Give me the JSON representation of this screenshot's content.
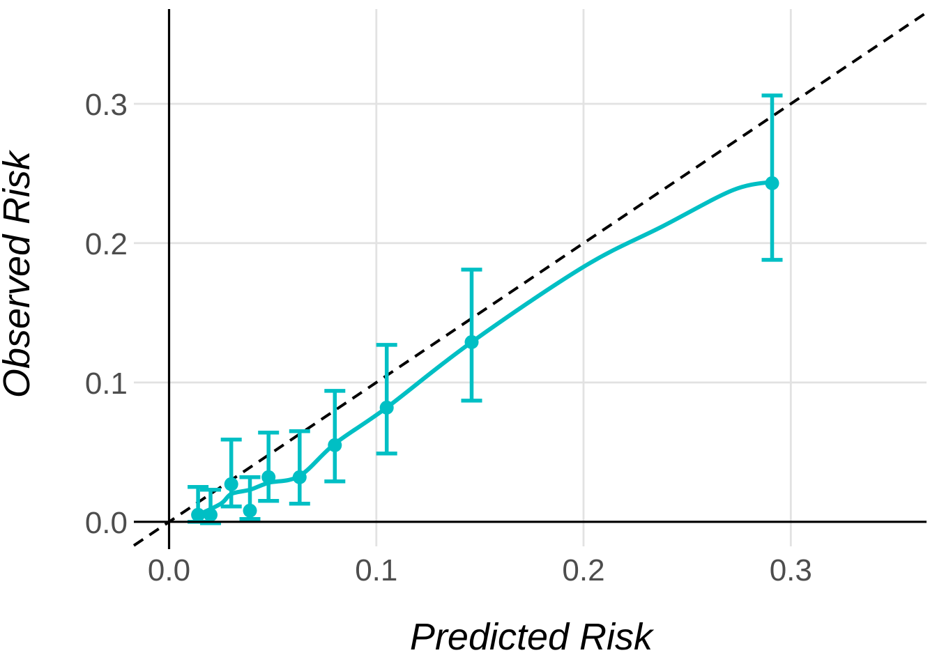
{
  "chart_data": {
    "type": "line",
    "title": "",
    "xlabel": "Predicted Risk",
    "ylabel": "Observed Risk",
    "x_ticks": [
      0.0,
      0.1,
      0.2,
      0.3
    ],
    "x_tick_labels": [
      "0.0",
      "0.1",
      "0.2",
      "0.3"
    ],
    "y_ticks": [
      0.0,
      0.1,
      0.2,
      0.3
    ],
    "y_tick_labels": [
      "0.0",
      "0.1",
      "0.2",
      "0.3"
    ],
    "xlim": [
      -0.017,
      0.3655
    ],
    "ylim": [
      -0.0176,
      0.368
    ],
    "grid": true,
    "legend": "none",
    "reference_line": {
      "type": "identity",
      "slope": 1,
      "intercept": 0,
      "style": "dashed",
      "color": "#000000"
    },
    "series": [
      {
        "name": "calibration-curve",
        "color": "#00BFC4",
        "marker": "circle",
        "error_bars": true,
        "points": [
          {
            "x": 0.014,
            "y": 0.005,
            "lower": 0.0,
            "upper": 0.025
          },
          {
            "x": 0.02,
            "y": 0.005,
            "lower": -0.001,
            "upper": 0.023
          },
          {
            "x": 0.03,
            "y": 0.027,
            "lower": 0.011,
            "upper": 0.059
          },
          {
            "x": 0.039,
            "y": 0.008,
            "lower": 0.002,
            "upper": 0.032
          },
          {
            "x": 0.048,
            "y": 0.032,
            "lower": 0.015,
            "upper": 0.064
          },
          {
            "x": 0.063,
            "y": 0.032,
            "lower": 0.013,
            "upper": 0.065
          },
          {
            "x": 0.08,
            "y": 0.055,
            "lower": 0.029,
            "upper": 0.094
          },
          {
            "x": 0.105,
            "y": 0.082,
            "lower": 0.049,
            "upper": 0.127
          },
          {
            "x": 0.146,
            "y": 0.129,
            "lower": 0.087,
            "upper": 0.181
          },
          {
            "x": 0.291,
            "y": 0.243,
            "lower": 0.188,
            "upper": 0.306
          }
        ],
        "smooth_curve": [
          [
            0.014,
            0.005
          ],
          [
            0.025,
            0.013
          ],
          [
            0.03,
            0.02
          ],
          [
            0.039,
            0.023
          ],
          [
            0.048,
            0.028
          ],
          [
            0.063,
            0.033
          ],
          [
            0.08,
            0.056
          ],
          [
            0.105,
            0.082
          ],
          [
            0.146,
            0.129
          ],
          [
            0.2,
            0.183
          ],
          [
            0.238,
            0.212
          ],
          [
            0.272,
            0.238
          ],
          [
            0.291,
            0.244
          ]
        ]
      }
    ],
    "colors": {
      "series": "#00BFC4",
      "grid": "#E2E2E2",
      "axis": "#000000",
      "tick_text": "#4D4D4D",
      "background": "#FFFFFF"
    }
  }
}
